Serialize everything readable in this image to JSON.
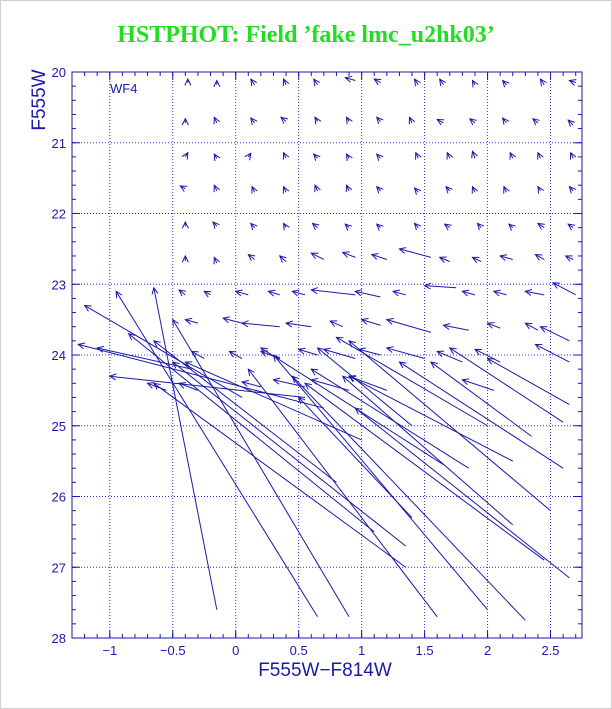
{
  "title": "HSTPHOT: Field ’fake lmc_u2hk03’",
  "chart_data": {
    "type": "vector-field",
    "title": "HSTPHOT: Field ’fake lmc_u2hk03’",
    "xlabel": "F555W−F814W",
    "ylabel": "F555W",
    "panel_label": "WF4",
    "xlim": [
      -1.3,
      2.75
    ],
    "ylim": [
      28,
      20
    ],
    "y_inverted": true,
    "grid": true,
    "x_ticks": [
      -1,
      -0.5,
      0,
      0.5,
      1,
      1.5,
      2,
      2.5
    ],
    "x_tick_labels": [
      "−1",
      "−0.5",
      "0",
      "0.5",
      "1",
      "1.5",
      "2",
      "2.5"
    ],
    "y_ticks": [
      20,
      21,
      22,
      23,
      24,
      25,
      26,
      27,
      28
    ],
    "y_tick_labels": [
      "20",
      "21",
      "22",
      "23",
      "24",
      "25",
      "26",
      "27",
      "28"
    ],
    "line_color": "#1a1aa8",
    "grid_color": "#3333cc",
    "title_color": "#22dd22",
    "vectors": [
      {
        "x0": -0.38,
        "y0": 20.15,
        "x1": -0.38,
        "y1": 20.1
      },
      {
        "x0": -0.15,
        "y0": 20.18,
        "x1": -0.15,
        "y1": 20.12
      },
      {
        "x0": 0.15,
        "y0": 20.18,
        "x1": 0.12,
        "y1": 20.1
      },
      {
        "x0": 0.4,
        "y0": 20.18,
        "x1": 0.38,
        "y1": 20.1
      },
      {
        "x0": 0.65,
        "y0": 20.18,
        "x1": 0.62,
        "y1": 20.1
      },
      {
        "x0": 0.95,
        "y0": 20.12,
        "x1": 0.87,
        "y1": 20.08
      },
      {
        "x0": 1.15,
        "y0": 20.15,
        "x1": 1.1,
        "y1": 20.1
      },
      {
        "x0": 1.45,
        "y0": 20.18,
        "x1": 1.42,
        "y1": 20.1
      },
      {
        "x0": 1.65,
        "y0": 20.18,
        "x1": 1.62,
        "y1": 20.1
      },
      {
        "x0": 1.9,
        "y0": 20.18,
        "x1": 1.88,
        "y1": 20.12
      },
      {
        "x0": 2.15,
        "y0": 20.18,
        "x1": 2.12,
        "y1": 20.12
      },
      {
        "x0": 2.45,
        "y0": 20.18,
        "x1": 2.42,
        "y1": 20.1
      },
      {
        "x0": 2.7,
        "y0": 20.15,
        "x1": 2.65,
        "y1": 20.12
      },
      {
        "x0": -0.4,
        "y0": 20.72,
        "x1": -0.4,
        "y1": 20.66
      },
      {
        "x0": -0.15,
        "y0": 20.72,
        "x1": -0.17,
        "y1": 20.64
      },
      {
        "x0": 0.15,
        "y0": 20.72,
        "x1": 0.12,
        "y1": 20.65
      },
      {
        "x0": 0.4,
        "y0": 20.7,
        "x1": 0.36,
        "y1": 20.64
      },
      {
        "x0": 0.65,
        "y0": 20.7,
        "x1": 0.63,
        "y1": 20.64
      },
      {
        "x0": 0.9,
        "y0": 20.7,
        "x1": 0.88,
        "y1": 20.64
      },
      {
        "x0": 1.15,
        "y0": 20.7,
        "x1": 1.12,
        "y1": 20.64
      },
      {
        "x0": 1.4,
        "y0": 20.72,
        "x1": 1.38,
        "y1": 20.64
      },
      {
        "x0": 1.65,
        "y0": 20.72,
        "x1": 1.6,
        "y1": 20.67
      },
      {
        "x0": 1.9,
        "y0": 20.72,
        "x1": 1.86,
        "y1": 20.66
      },
      {
        "x0": 2.15,
        "y0": 20.72,
        "x1": 2.12,
        "y1": 20.65
      },
      {
        "x0": 2.4,
        "y0": 20.72,
        "x1": 2.36,
        "y1": 20.66
      },
      {
        "x0": 2.68,
        "y0": 20.75,
        "x1": 2.64,
        "y1": 20.68
      },
      {
        "x0": -0.4,
        "y0": 21.2,
        "x1": -0.38,
        "y1": 21.14
      },
      {
        "x0": -0.15,
        "y0": 21.22,
        "x1": -0.17,
        "y1": 21.16
      },
      {
        "x0": 0.1,
        "y0": 21.2,
        "x1": 0.12,
        "y1": 21.15
      },
      {
        "x0": 0.4,
        "y0": 21.22,
        "x1": 0.38,
        "y1": 21.14
      },
      {
        "x0": 0.65,
        "y0": 21.22,
        "x1": 0.62,
        "y1": 21.16
      },
      {
        "x0": 0.9,
        "y0": 21.22,
        "x1": 0.88,
        "y1": 21.16
      },
      {
        "x0": 1.15,
        "y0": 21.22,
        "x1": 1.12,
        "y1": 21.16
      },
      {
        "x0": 1.45,
        "y0": 21.22,
        "x1": 1.43,
        "y1": 21.14
      },
      {
        "x0": 1.7,
        "y0": 21.22,
        "x1": 1.68,
        "y1": 21.14
      },
      {
        "x0": 1.9,
        "y0": 21.22,
        "x1": 1.88,
        "y1": 21.12
      },
      {
        "x0": 2.2,
        "y0": 21.22,
        "x1": 2.18,
        "y1": 21.14
      },
      {
        "x0": 2.42,
        "y0": 21.22,
        "x1": 2.4,
        "y1": 21.14
      },
      {
        "x0": 2.68,
        "y0": 21.22,
        "x1": 2.66,
        "y1": 21.14
      },
      {
        "x0": -0.4,
        "y0": 21.65,
        "x1": -0.44,
        "y1": 21.61
      },
      {
        "x0": -0.15,
        "y0": 21.68,
        "x1": -0.17,
        "y1": 21.6
      },
      {
        "x0": 0.15,
        "y0": 21.7,
        "x1": 0.13,
        "y1": 21.62
      },
      {
        "x0": 0.4,
        "y0": 21.7,
        "x1": 0.38,
        "y1": 21.62
      },
      {
        "x0": 0.65,
        "y0": 21.68,
        "x1": 0.63,
        "y1": 21.6
      },
      {
        "x0": 0.9,
        "y0": 21.68,
        "x1": 0.88,
        "y1": 21.6
      },
      {
        "x0": 1.15,
        "y0": 21.68,
        "x1": 1.12,
        "y1": 21.62
      },
      {
        "x0": 1.45,
        "y0": 21.7,
        "x1": 1.42,
        "y1": 21.64
      },
      {
        "x0": 1.7,
        "y0": 21.68,
        "x1": 1.67,
        "y1": 21.62
      },
      {
        "x0": 1.9,
        "y0": 21.7,
        "x1": 1.88,
        "y1": 21.62
      },
      {
        "x0": 2.15,
        "y0": 21.7,
        "x1": 2.13,
        "y1": 21.62
      },
      {
        "x0": 2.42,
        "y0": 21.68,
        "x1": 2.4,
        "y1": 21.62
      },
      {
        "x0": 2.68,
        "y0": 21.68,
        "x1": 2.65,
        "y1": 21.62
      },
      {
        "x0": -0.4,
        "y0": 22.18,
        "x1": -0.4,
        "y1": 22.12
      },
      {
        "x0": -0.15,
        "y0": 22.18,
        "x1": -0.18,
        "y1": 22.12
      },
      {
        "x0": 0.15,
        "y0": 22.2,
        "x1": 0.12,
        "y1": 22.14
      },
      {
        "x0": 0.4,
        "y0": 22.2,
        "x1": 0.38,
        "y1": 22.14
      },
      {
        "x0": 0.65,
        "y0": 22.2,
        "x1": 0.61,
        "y1": 22.14
      },
      {
        "x0": 0.9,
        "y0": 22.2,
        "x1": 0.87,
        "y1": 22.15
      },
      {
        "x0": 1.15,
        "y0": 22.2,
        "x1": 1.12,
        "y1": 22.15
      },
      {
        "x0": 1.45,
        "y0": 22.2,
        "x1": 1.42,
        "y1": 22.14
      },
      {
        "x0": 1.7,
        "y0": 22.2,
        "x1": 1.66,
        "y1": 22.15
      },
      {
        "x0": 1.95,
        "y0": 22.2,
        "x1": 1.92,
        "y1": 22.14
      },
      {
        "x0": 2.2,
        "y0": 22.2,
        "x1": 2.17,
        "y1": 22.15
      },
      {
        "x0": 2.45,
        "y0": 22.2,
        "x1": 2.4,
        "y1": 22.14
      },
      {
        "x0": 2.68,
        "y0": 22.2,
        "x1": 2.64,
        "y1": 22.15
      },
      {
        "x0": -0.4,
        "y0": 22.67,
        "x1": -0.4,
        "y1": 22.6
      },
      {
        "x0": -0.15,
        "y0": 22.7,
        "x1": -0.17,
        "y1": 22.62
      },
      {
        "x0": 0.15,
        "y0": 22.65,
        "x1": 0.1,
        "y1": 22.58
      },
      {
        "x0": 0.4,
        "y0": 22.68,
        "x1": 0.35,
        "y1": 22.6
      },
      {
        "x0": 0.7,
        "y0": 22.65,
        "x1": 0.6,
        "y1": 22.56
      },
      {
        "x0": 0.95,
        "y0": 22.62,
        "x1": 0.85,
        "y1": 22.55
      },
      {
        "x0": 1.2,
        "y0": 22.65,
        "x1": 1.08,
        "y1": 22.58
      },
      {
        "x0": 1.55,
        "y0": 22.62,
        "x1": 1.3,
        "y1": 22.5
      },
      {
        "x0": 1.7,
        "y0": 22.68,
        "x1": 1.62,
        "y1": 22.62
      },
      {
        "x0": 1.95,
        "y0": 22.68,
        "x1": 1.88,
        "y1": 22.62
      },
      {
        "x0": 2.2,
        "y0": 22.65,
        "x1": 2.1,
        "y1": 22.6
      },
      {
        "x0": 2.45,
        "y0": 22.65,
        "x1": 2.38,
        "y1": 22.58
      },
      {
        "x0": 2.68,
        "y0": 22.65,
        "x1": 2.62,
        "y1": 22.6
      },
      {
        "x0": -0.4,
        "y0": 23.15,
        "x1": -0.45,
        "y1": 23.08
      },
      {
        "x0": -0.2,
        "y0": 23.15,
        "x1": -0.25,
        "y1": 23.1
      },
      {
        "x0": 0.1,
        "y0": 23.15,
        "x1": 0.0,
        "y1": 23.1
      },
      {
        "x0": 0.35,
        "y0": 23.15,
        "x1": 0.26,
        "y1": 23.1
      },
      {
        "x0": 0.55,
        "y0": 23.15,
        "x1": 0.45,
        "y1": 23.1
      },
      {
        "x0": 0.95,
        "y0": 23.15,
        "x1": 0.6,
        "y1": 23.08
      },
      {
        "x0": 1.15,
        "y0": 23.18,
        "x1": 0.95,
        "y1": 23.1
      },
      {
        "x0": 1.35,
        "y0": 23.15,
        "x1": 1.25,
        "y1": 23.1
      },
      {
        "x0": 1.75,
        "y0": 23.05,
        "x1": 1.5,
        "y1": 23.02
      },
      {
        "x0": 1.9,
        "y0": 23.15,
        "x1": 1.8,
        "y1": 23.1
      },
      {
        "x0": 2.15,
        "y0": 23.15,
        "x1": 2.05,
        "y1": 23.1
      },
      {
        "x0": 2.45,
        "y0": 23.15,
        "x1": 2.3,
        "y1": 23.1
      },
      {
        "x0": 2.7,
        "y0": 23.15,
        "x1": 2.52,
        "y1": 22.98
      },
      {
        "x0": -0.3,
        "y0": 23.55,
        "x1": -0.4,
        "y1": 23.5
      },
      {
        "x0": 0.05,
        "y0": 23.55,
        "x1": -0.1,
        "y1": 23.48
      },
      {
        "x0": 0.35,
        "y0": 23.6,
        "x1": 0.05,
        "y1": 23.55
      },
      {
        "x0": 0.6,
        "y0": 23.6,
        "x1": 0.4,
        "y1": 23.55
      },
      {
        "x0": 0.85,
        "y0": 23.6,
        "x1": 0.75,
        "y1": 23.52
      },
      {
        "x0": 1.15,
        "y0": 23.58,
        "x1": 1.0,
        "y1": 23.5
      },
      {
        "x0": 1.55,
        "y0": 23.68,
        "x1": 1.2,
        "y1": 23.5
      },
      {
        "x0": 1.85,
        "y0": 23.65,
        "x1": 1.65,
        "y1": 23.58
      },
      {
        "x0": 2.1,
        "y0": 23.62,
        "x1": 2.0,
        "y1": 23.55
      },
      {
        "x0": 2.4,
        "y0": 23.65,
        "x1": 2.3,
        "y1": 23.55
      },
      {
        "x0": 2.65,
        "y0": 23.8,
        "x1": 2.42,
        "y1": 23.6
      },
      {
        "x0": -0.25,
        "y0": 24.05,
        "x1": -0.35,
        "y1": 23.95
      },
      {
        "x0": 0.05,
        "y0": 24.05,
        "x1": -0.05,
        "y1": 23.95
      },
      {
        "x0": 0.35,
        "y0": 24.05,
        "x1": 0.2,
        "y1": 23.95
      },
      {
        "x0": 0.65,
        "y0": 24.0,
        "x1": 0.5,
        "y1": 23.92
      },
      {
        "x0": 0.95,
        "y0": 24.05,
        "x1": 0.7,
        "y1": 23.92
      },
      {
        "x0": 1.15,
        "y0": 24.0,
        "x1": 0.98,
        "y1": 23.92
      },
      {
        "x0": 1.5,
        "y0": 24.05,
        "x1": 1.2,
        "y1": 23.9
      },
      {
        "x0": 1.8,
        "y0": 24.1,
        "x1": 1.6,
        "y1": 23.95
      },
      {
        "x0": 2.1,
        "y0": 24.1,
        "x1": 1.9,
        "y1": 23.92
      },
      {
        "x0": 2.65,
        "y0": 24.1,
        "x1": 2.38,
        "y1": 23.85
      },
      {
        "x0": -0.55,
        "y0": 24.5,
        "x1": -0.7,
        "y1": 24.4
      },
      {
        "x0": -0.3,
        "y0": 24.5,
        "x1": -0.45,
        "y1": 24.4
      },
      {
        "x0": 0.2,
        "y0": 24.45,
        "x1": 0.05,
        "y1": 24.38
      },
      {
        "x0": 0.55,
        "y0": 24.45,
        "x1": 0.3,
        "y1": 24.35
      },
      {
        "x0": 0.9,
        "y0": 24.5,
        "x1": 0.6,
        "y1": 24.35
      },
      {
        "x0": 1.2,
        "y0": 24.5,
        "x1": 0.9,
        "y1": 24.3
      },
      {
        "x0": 2.05,
        "y0": 24.5,
        "x1": 1.8,
        "y1": 24.35
      },
      {
        "x0": 2.65,
        "y0": 24.7,
        "x1": 2.0,
        "y1": 24.05
      },
      {
        "x0": -0.15,
        "y0": 27.6,
        "x1": -0.65,
        "y1": 23.05
      },
      {
        "x0": 0.65,
        "y0": 27.7,
        "x1": -0.95,
        "y1": 23.1
      },
      {
        "x0": 0.9,
        "y0": 27.7,
        "x1": -0.5,
        "y1": 23.5
      },
      {
        "x0": 0.05,
        "y0": 24.6,
        "x1": -1.2,
        "y1": 23.3
      },
      {
        "x0": -0.35,
        "y0": 24.2,
        "x1": -1.1,
        "y1": 23.9
      },
      {
        "x0": 0.8,
        "y0": 25.8,
        "x1": -0.65,
        "y1": 23.8
      },
      {
        "x0": 1.1,
        "y0": 26.5,
        "x1": -0.85,
        "y1": 23.7
      },
      {
        "x0": 1.35,
        "y0": 26.7,
        "x1": -0.5,
        "y1": 24.1
      },
      {
        "x0": 0.55,
        "y0": 24.6,
        "x1": -1.0,
        "y1": 24.3
      },
      {
        "x0": 1.0,
        "y0": 25.2,
        "x1": -0.4,
        "y1": 24.1
      },
      {
        "x0": 1.35,
        "y0": 27.0,
        "x1": -0.65,
        "y1": 24.4
      },
      {
        "x0": 0.7,
        "y0": 24.75,
        "x1": -1.25,
        "y1": 23.85
      },
      {
        "x0": 1.6,
        "y0": 27.7,
        "x1": 0.1,
        "y1": 24.2
      },
      {
        "x0": 2.0,
        "y0": 27.6,
        "x1": 0.3,
        "y1": 24.0
      },
      {
        "x0": 1.4,
        "y0": 26.3,
        "x1": 0.5,
        "y1": 24.6
      },
      {
        "x0": 2.3,
        "y0": 27.75,
        "x1": 0.45,
        "y1": 24.3
      },
      {
        "x0": 1.65,
        "y0": 25.55,
        "x1": 0.2,
        "y1": 23.9
      },
      {
        "x0": 1.85,
        "y0": 25.6,
        "x1": 0.6,
        "y1": 24.2
      },
      {
        "x0": 2.2,
        "y0": 26.4,
        "x1": 0.85,
        "y1": 24.3
      },
      {
        "x0": 2.45,
        "y0": 26.9,
        "x1": 0.55,
        "y1": 24.4
      },
      {
        "x0": 2.65,
        "y0": 27.15,
        "x1": 0.95,
        "y1": 24.75
      },
      {
        "x0": 2.2,
        "y0": 25.5,
        "x1": 0.9,
        "y1": 24.3
      },
      {
        "x0": 2.5,
        "y0": 26.2,
        "x1": 0.9,
        "y1": 23.8
      },
      {
        "x0": 1.4,
        "y0": 25.0,
        "x1": 0.65,
        "y1": 23.9
      },
      {
        "x0": 2.0,
        "y0": 25.0,
        "x1": 0.8,
        "y1": 23.75
      },
      {
        "x0": 2.6,
        "y0": 25.6,
        "x1": 1.3,
        "y1": 24.1
      },
      {
        "x0": 2.35,
        "y0": 25.15,
        "x1": 1.55,
        "y1": 24.1
      },
      {
        "x0": 2.6,
        "y0": 24.95,
        "x1": 1.7,
        "y1": 23.9
      }
    ]
  }
}
